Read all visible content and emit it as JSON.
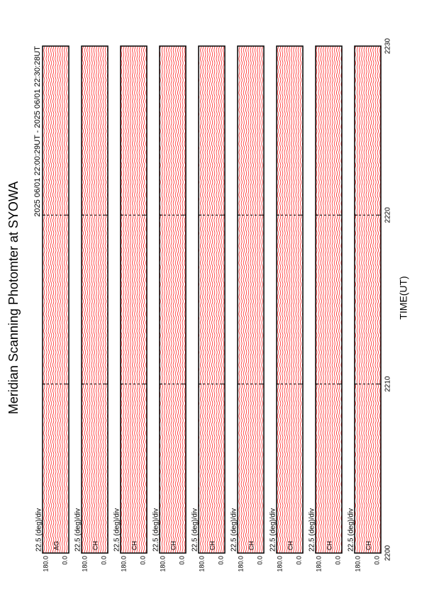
{
  "chart_data": {
    "type": "line",
    "title": "Meridian Scanning Photomter at SYOWA",
    "subtitle": "2025 06/01 22:00:29UT - 2025 06/01 22:30:28UT",
    "xlabel": "TIME(UT)",
    "xlim": [
      2200,
      2230
    ],
    "xticks": [
      2200,
      2210,
      2220,
      2230
    ],
    "color": "#ff0000",
    "panels": [
      {
        "scale_label": "22.5 (deg)/div",
        "channel": "AG",
        "ylim": [
          0,
          180
        ],
        "yticks": [
          {
            "value": 180,
            "label": "180.0"
          },
          {
            "value": 0,
            "label": "0.0"
          }
        ]
      },
      {
        "scale_label": "22.5 (deg)/div",
        "channel": "CH",
        "ylim": [
          0,
          180
        ],
        "yticks": [
          {
            "value": 180,
            "label": "180.0"
          },
          {
            "value": 0,
            "label": "0.0"
          }
        ]
      },
      {
        "scale_label": "22.5 (deg)/div",
        "channel": "CH",
        "ylim": [
          0,
          180
        ],
        "yticks": [
          {
            "value": 180,
            "label": "180.0"
          },
          {
            "value": 0,
            "label": "0.0"
          }
        ]
      },
      {
        "scale_label": "22.5 (deg)/div",
        "channel": "CH",
        "ylim": [
          0,
          180
        ],
        "yticks": [
          {
            "value": 180,
            "label": "180.0"
          },
          {
            "value": 0,
            "label": "0.0"
          }
        ]
      },
      {
        "scale_label": "22.5 (deg)/div",
        "channel": "CH",
        "ylim": [
          0,
          180
        ],
        "yticks": [
          {
            "value": 180,
            "label": "180.0"
          },
          {
            "value": 0,
            "label": "0.0"
          }
        ]
      },
      {
        "scale_label": "22.5 (deg)/div",
        "channel": "CH",
        "ylim": [
          0,
          180
        ],
        "yticks": [
          {
            "value": 180,
            "label": "180.0"
          },
          {
            "value": 0,
            "label": "0.0"
          }
        ]
      },
      {
        "scale_label": "22.5 (deg)/div",
        "channel": "CH",
        "ylim": [
          0,
          180
        ],
        "yticks": [
          {
            "value": 180,
            "label": "180.0"
          },
          {
            "value": 0,
            "label": "0.0"
          }
        ]
      },
      {
        "scale_label": "22.5 (deg)/div",
        "channel": "CH",
        "ylim": [
          0,
          180
        ],
        "yticks": [
          {
            "value": 180,
            "label": "180.0"
          },
          {
            "value": 0,
            "label": "0.0"
          }
        ]
      },
      {
        "scale_label": "22.5 (deg)/div",
        "channel": "CH",
        "ylim": [
          0,
          180
        ],
        "yticks": [
          {
            "value": 180,
            "label": "180.0"
          },
          {
            "value": 0,
            "label": "0.0"
          }
        ]
      }
    ]
  }
}
